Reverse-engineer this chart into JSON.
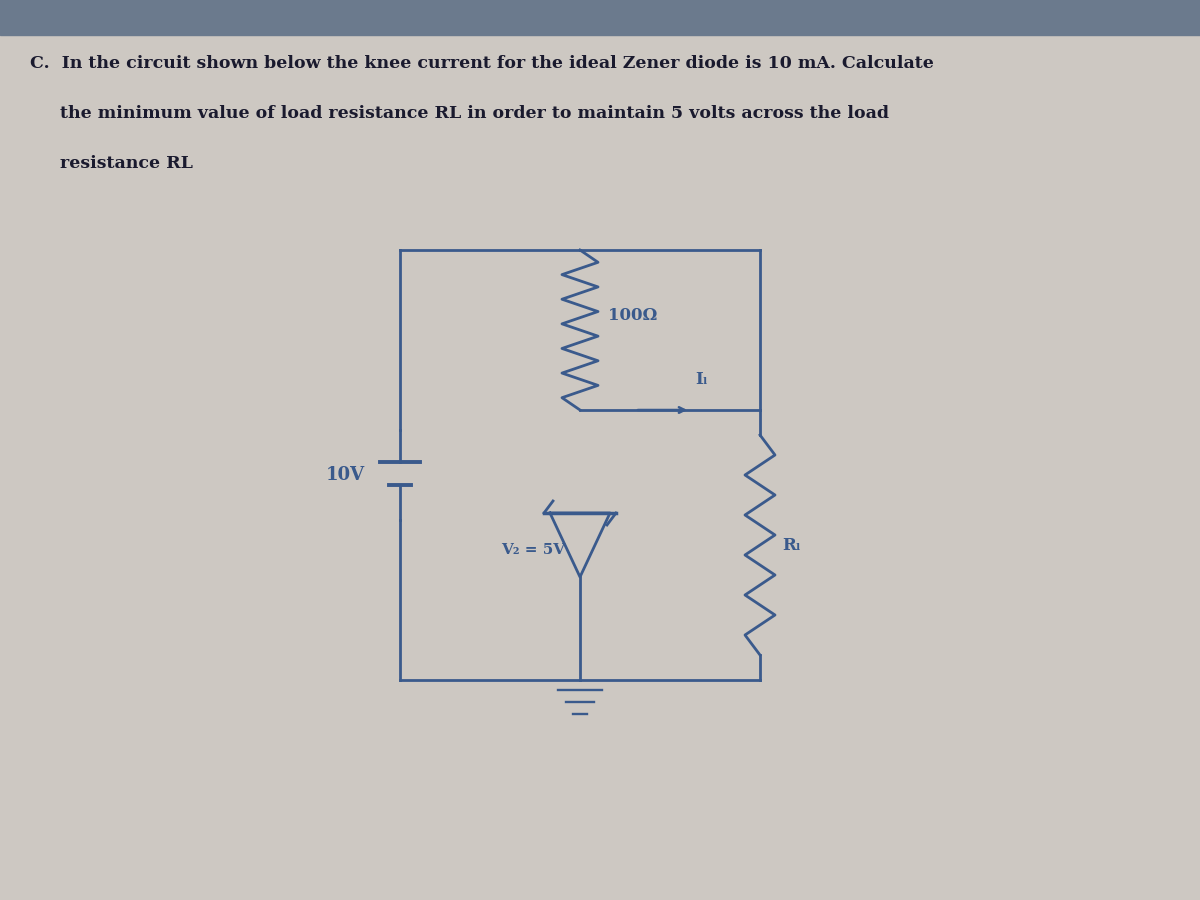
{
  "bg_color": "#cdc8c2",
  "header_color": "#6b7a8d",
  "circuit_color": "#3a5a8c",
  "text_color": "#1a1a2e",
  "title_line1": "C.  In the circuit shown below the knee current for the ideal Zener diode is 10 mA. Calculate",
  "title_line2": "     the minimum value of load resistance RL in order to maintain 5 volts across the load",
  "title_line3": "     resistance RL",
  "resistor_label": "100Ω",
  "voltage_label": "10V",
  "zener_label": "V₂ = 5V",
  "current_label": "Iₗ",
  "rl_label": "Rₗ"
}
